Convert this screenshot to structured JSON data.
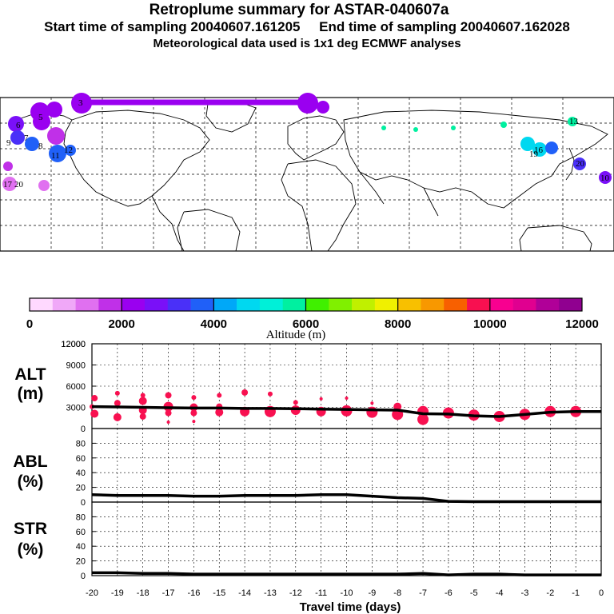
{
  "header": {
    "title": "Retroplume summary for ASTAR-040607a",
    "start_label": "Start time of sampling 20040607.161205",
    "end_label": "End time of sampling 20040607.162028",
    "met_label": "Meteorological data used is 1x1 deg ECMWF analyses"
  },
  "colorbar": {
    "title": "Altitude (m)",
    "ticks": [
      "0",
      "2000",
      "4000",
      "6000",
      "8000",
      "10000",
      "12000"
    ],
    "colors": [
      "#ffd9ff",
      "#f0a8f8",
      "#e070f0",
      "#c030e8",
      "#9a00f0",
      "#7a10f8",
      "#4a30f8",
      "#2060f8",
      "#00a8f8",
      "#00d8f0",
      "#00f0d8",
      "#00f0a0",
      "#40f000",
      "#80f000",
      "#c0f000",
      "#f0f000",
      "#f8c000",
      "#f89800",
      "#f86000",
      "#f81050",
      "#f80090",
      "#e00090",
      "#b00098",
      "#900090"
    ]
  },
  "map": {
    "labels": [
      "3",
      "6",
      "5",
      "7",
      "8",
      "9",
      "11",
      "12",
      "17",
      "20",
      "16",
      "10",
      "13",
      "19",
      "20"
    ]
  },
  "chart_data": [
    {
      "type": "line",
      "name": "ALT",
      "title": "ALT (m)",
      "ylabel_line1": "ALT",
      "ylabel_line2": "(m)",
      "ylim": [
        0,
        12000
      ],
      "yticks": [
        "0",
        "3000",
        "6000",
        "9000",
        "12000"
      ],
      "x": [
        -20,
        -19,
        -18,
        -17,
        -16,
        -15,
        -14,
        -13,
        -12,
        -11,
        -10,
        -9,
        -8,
        -7,
        -6,
        -5,
        -4,
        -3,
        -2,
        -1,
        0
      ],
      "values": [
        3100,
        3050,
        3000,
        2950,
        2900,
        2900,
        2850,
        2850,
        2800,
        2750,
        2700,
        2650,
        2600,
        2100,
        2050,
        1800,
        1700,
        2000,
        2300,
        2400,
        2400
      ],
      "clusters": [
        {
          "x": -19.9,
          "alt": 4300,
          "size": 4
        },
        {
          "x": -19.9,
          "alt": 2100,
          "size": 5
        },
        {
          "x": -20,
          "alt": 3100,
          "size": 3
        },
        {
          "x": -19,
          "alt": 5000,
          "size": 3
        },
        {
          "x": -19,
          "alt": 3600,
          "size": 4
        },
        {
          "x": -19,
          "alt": 1600,
          "size": 5
        },
        {
          "x": -18,
          "alt": 4700,
          "size": 3
        },
        {
          "x": -18,
          "alt": 3900,
          "size": 5
        },
        {
          "x": -18,
          "alt": 2600,
          "size": 5
        },
        {
          "x": -18,
          "alt": 1700,
          "size": 4
        },
        {
          "x": -17,
          "alt": 4700,
          "size": 4
        },
        {
          "x": -17,
          "alt": 3100,
          "size": 6
        },
        {
          "x": -17,
          "alt": 2200,
          "size": 4
        },
        {
          "x": -17,
          "alt": 900,
          "size": 2
        },
        {
          "x": -16,
          "alt": 4400,
          "size": 3
        },
        {
          "x": -16,
          "alt": 3000,
          "size": 5
        },
        {
          "x": -16,
          "alt": 2200,
          "size": 4
        },
        {
          "x": -16,
          "alt": 1000,
          "size": 2
        },
        {
          "x": -15,
          "alt": 4700,
          "size": 3
        },
        {
          "x": -15,
          "alt": 3100,
          "size": 4
        },
        {
          "x": -15,
          "alt": 2300,
          "size": 5
        },
        {
          "x": -14,
          "alt": 5100,
          "size": 4
        },
        {
          "x": -14,
          "alt": 2400,
          "size": 6
        },
        {
          "x": -13,
          "alt": 4900,
          "size": 3
        },
        {
          "x": -13,
          "alt": 2400,
          "size": 7
        },
        {
          "x": -12,
          "alt": 3700,
          "size": 3
        },
        {
          "x": -12,
          "alt": 2600,
          "size": 6
        },
        {
          "x": -11,
          "alt": 4200,
          "size": 2
        },
        {
          "x": -11,
          "alt": 2400,
          "size": 6
        },
        {
          "x": -10,
          "alt": 4300,
          "size": 2
        },
        {
          "x": -10,
          "alt": 2500,
          "size": 7
        },
        {
          "x": -9,
          "alt": 3600,
          "size": 2
        },
        {
          "x": -9,
          "alt": 2300,
          "size": 7
        },
        {
          "x": -8,
          "alt": 3100,
          "size": 5
        },
        {
          "x": -8,
          "alt": 2000,
          "size": 7
        },
        {
          "x": -7,
          "alt": 2400,
          "size": 7
        },
        {
          "x": -7,
          "alt": 1300,
          "size": 7
        },
        {
          "x": -6,
          "alt": 2200,
          "size": 7
        },
        {
          "x": -5,
          "alt": 1900,
          "size": 7
        },
        {
          "x": -4,
          "alt": 1700,
          "size": 7
        },
        {
          "x": -3,
          "alt": 2000,
          "size": 7
        },
        {
          "x": -2,
          "alt": 2400,
          "size": 7
        },
        {
          "x": -1,
          "alt": 2400,
          "size": 7
        }
      ]
    },
    {
      "type": "line",
      "name": "ABL",
      "title": "ABL (%)",
      "ylabel_line1": "ABL",
      "ylabel_line2": "(%)",
      "ylim": [
        0,
        100
      ],
      "yticks": [
        "0",
        "20",
        "40",
        "60",
        "80"
      ],
      "x": [
        -20,
        -19,
        -18,
        -17,
        -16,
        -15,
        -14,
        -13,
        -12,
        -11,
        -10,
        -9,
        -8,
        -7,
        -6,
        -5,
        -4,
        -3,
        -2,
        -1,
        0
      ],
      "values": [
        10,
        9,
        9,
        9,
        8,
        8,
        9,
        9,
        9,
        10,
        10,
        8,
        6,
        5,
        1,
        0.5,
        0.5,
        0.5,
        0.5,
        0.5,
        0.5
      ]
    },
    {
      "type": "line",
      "name": "STR",
      "title": "STR (%)",
      "ylabel_line1": "STR",
      "ylabel_line2": "(%)",
      "ylim": [
        0,
        100
      ],
      "yticks": [
        "0",
        "20",
        "40",
        "60",
        "80"
      ],
      "x": [
        -20,
        -19,
        -18,
        -17,
        -16,
        -15,
        -14,
        -13,
        -12,
        -11,
        -10,
        -9,
        -8,
        -7,
        -6,
        -5,
        -4,
        -3,
        -2,
        -1,
        0
      ],
      "values": [
        4,
        4,
        3,
        3,
        2,
        2,
        2,
        2,
        2,
        2,
        2,
        2,
        2,
        3,
        1,
        2,
        2,
        1,
        1,
        1,
        1
      ]
    }
  ],
  "xaxis": {
    "label": "Travel time (days)",
    "ticks": [
      "-20",
      "-19",
      "-18",
      "-17",
      "-16",
      "-15",
      "-14",
      "-13",
      "-12",
      "-11",
      "-10",
      "-9",
      "-8",
      "-7",
      "-6",
      "-5",
      "-4",
      "-3",
      "-2",
      "-1",
      "0"
    ]
  }
}
